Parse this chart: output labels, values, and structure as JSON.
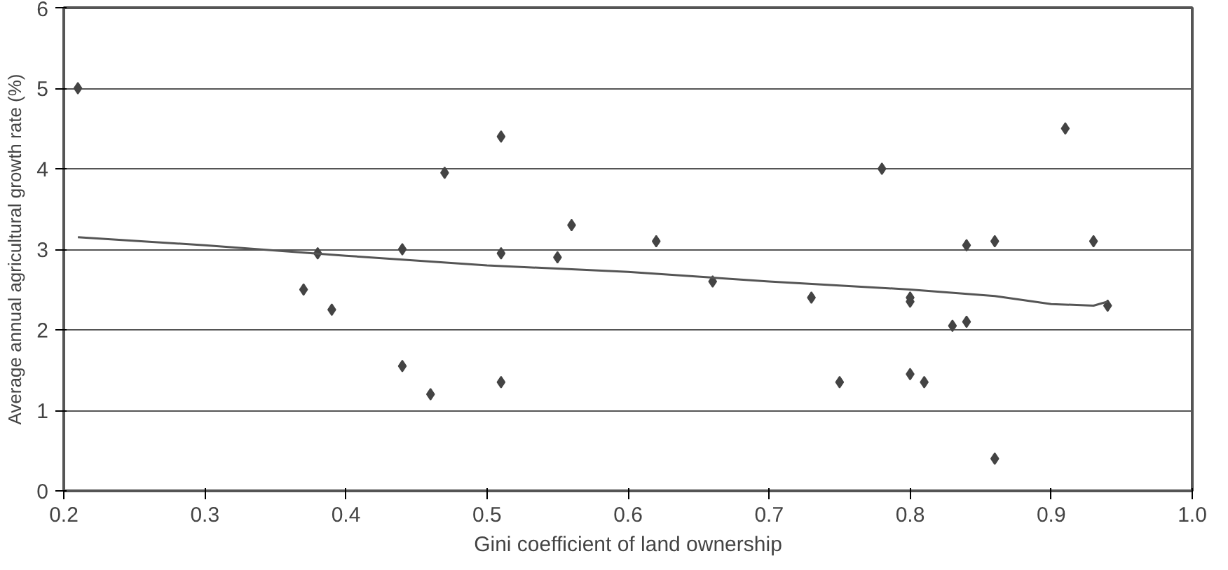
{
  "chart_data": {
    "type": "scatter",
    "xlabel": "Gini coefficient of land ownership",
    "ylabel": "Average annual agricultural growth rate (%)",
    "xlim": [
      0.2,
      1.0
    ],
    "xticks": [
      {
        "value": 0.2,
        "label": "0.2"
      },
      {
        "value": 0.3,
        "label": "0.3"
      },
      {
        "value": 0.4,
        "label": "0.4"
      },
      {
        "value": 0.5,
        "label": "0.5"
      },
      {
        "value": 0.6,
        "label": "0.6"
      },
      {
        "value": 0.7,
        "label": "0.7"
      },
      {
        "value": 0.8,
        "label": "0.8"
      },
      {
        "value": 0.9,
        "label": "0.9"
      },
      {
        "value": 1.0,
        "label": "1.0"
      }
    ],
    "ylim": [
      0,
      6
    ],
    "yticks": [
      0,
      1,
      2,
      3,
      4,
      5,
      6
    ],
    "grid": "y",
    "series": [
      {
        "marker": "diamond",
        "color": "#444444",
        "x": [
          0.21,
          0.37,
          0.38,
          0.39,
          0.44,
          0.44,
          0.46,
          0.47,
          0.51,
          0.51,
          0.51,
          0.55,
          0.56,
          0.62,
          0.66,
          0.73,
          0.75,
          0.78,
          0.8,
          0.8,
          0.8,
          0.81,
          0.83,
          0.84,
          0.84,
          0.86,
          0.86,
          0.91,
          0.93,
          0.94
        ],
        "values": [
          5.0,
          2.5,
          2.95,
          2.25,
          3.0,
          1.55,
          1.2,
          3.95,
          4.4,
          2.95,
          1.35,
          2.9,
          3.3,
          3.1,
          2.6,
          2.4,
          1.35,
          4.0,
          2.35,
          2.4,
          1.45,
          1.35,
          2.05,
          2.1,
          3.05,
          3.1,
          0.4,
          4.5,
          3.1,
          2.3
        ]
      },
      {
        "type": "line",
        "marker": "none",
        "color": "#555555",
        "x": [
          0.21,
          0.3,
          0.4,
          0.5,
          0.6,
          0.7,
          0.8,
          0.86,
          0.9,
          0.93,
          0.94
        ],
        "values": [
          3.15,
          3.05,
          2.92,
          2.8,
          2.72,
          2.6,
          2.5,
          2.42,
          2.32,
          2.3,
          2.35
        ]
      }
    ]
  }
}
